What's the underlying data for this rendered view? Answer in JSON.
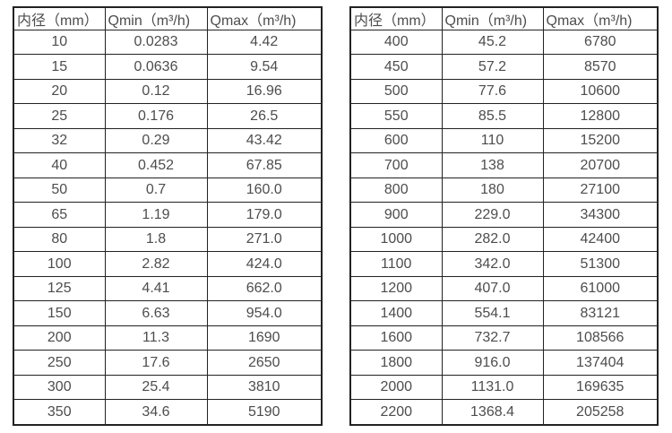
{
  "colors": {
    "background": "#ffffff",
    "text": "#4d4d4d",
    "border": "#222222"
  },
  "tables": [
    {
      "name": "flow-table-small-diameters",
      "headers": [
        "内径（mm）",
        "Qmin（m³/h)",
        "Qmax（m³/h)"
      ],
      "rows": [
        [
          "10",
          "0.0283",
          "4.42"
        ],
        [
          "15",
          "0.0636",
          "9.54"
        ],
        [
          "20",
          "0.12",
          "16.96"
        ],
        [
          "25",
          "0.176",
          "26.5"
        ],
        [
          "32",
          "0.29",
          "43.42"
        ],
        [
          "40",
          "0.452",
          "67.85"
        ],
        [
          "50",
          "0.7",
          "160.0"
        ],
        [
          "65",
          "1.19",
          "179.0"
        ],
        [
          "80",
          "1.8",
          "271.0"
        ],
        [
          "100",
          "2.82",
          "424.0"
        ],
        [
          "125",
          "4.41",
          "662.0"
        ],
        [
          "150",
          "6.63",
          "954.0"
        ],
        [
          "200",
          "11.3",
          "1690"
        ],
        [
          "250",
          "17.6",
          "2650"
        ],
        [
          "300",
          "25.4",
          "3810"
        ],
        [
          "350",
          "34.6",
          "5190"
        ]
      ]
    },
    {
      "name": "flow-table-large-diameters",
      "headers": [
        "内径（mm）",
        "Qmin（m³/h)",
        "Qmax（m³/h)"
      ],
      "rows": [
        [
          "400",
          "45.2",
          "6780"
        ],
        [
          "450",
          "57.2",
          "8570"
        ],
        [
          "500",
          "77.6",
          "10600"
        ],
        [
          "550",
          "85.5",
          "12800"
        ],
        [
          "600",
          "110",
          "15200"
        ],
        [
          "700",
          "138",
          "20700"
        ],
        [
          "800",
          "180",
          "27100"
        ],
        [
          "900",
          "229.0",
          "34300"
        ],
        [
          "1000",
          "282.0",
          "42400"
        ],
        [
          "1100",
          "342.0",
          "51300"
        ],
        [
          "1200",
          "407.0",
          "61000"
        ],
        [
          "1400",
          "554.1",
          "83121"
        ],
        [
          "1600",
          "732.7",
          "108566"
        ],
        [
          "1800",
          "916.0",
          "137404"
        ],
        [
          "2000",
          "1131.0",
          "169635"
        ],
        [
          "2200",
          "1368.4",
          "205258"
        ]
      ]
    }
  ]
}
